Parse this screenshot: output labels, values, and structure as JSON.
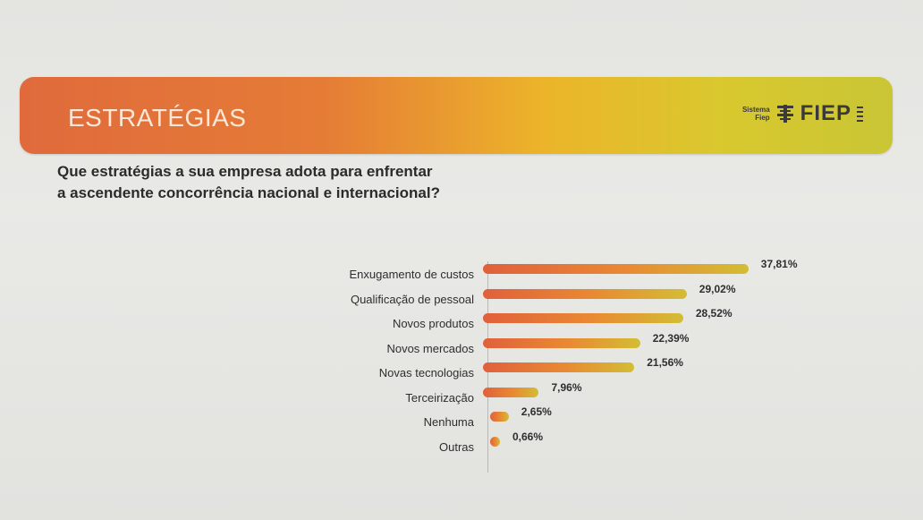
{
  "banner": {
    "title": "ESTRATÉGIAS",
    "logo_small_line1": "Sistema",
    "logo_small_line2": "Fiep",
    "logo_text": "FIEP"
  },
  "question": {
    "line1": "Que estratégias a sua empresa adota para enfrentar",
    "line2": "a ascendente concorrência nacional e internacional?"
  },
  "colors": {
    "bar_start": "#e0603b",
    "bar_end": "#d3bd34",
    "banner_start": "#e06a3c",
    "banner_end": "#c9c635"
  },
  "chart_data": {
    "type": "bar",
    "orientation": "horizontal",
    "categories": [
      "Enxugamento de custos",
      "Qualificação de pessoal",
      "Novos produtos",
      "Novos mercados",
      "Novas tecnologias",
      "Terceirização",
      "Nenhuma",
      "Outras"
    ],
    "values": [
      37.81,
      29.02,
      28.52,
      22.39,
      21.56,
      7.96,
      2.65,
      0.66
    ],
    "value_labels": [
      "37,81%",
      "29,02%",
      "28,52%",
      "22,39%",
      "21,56%",
      "7,96%",
      "2,65%",
      "0,66%"
    ],
    "xlim": [
      0,
      40
    ],
    "grid": false,
    "legend": "none"
  }
}
